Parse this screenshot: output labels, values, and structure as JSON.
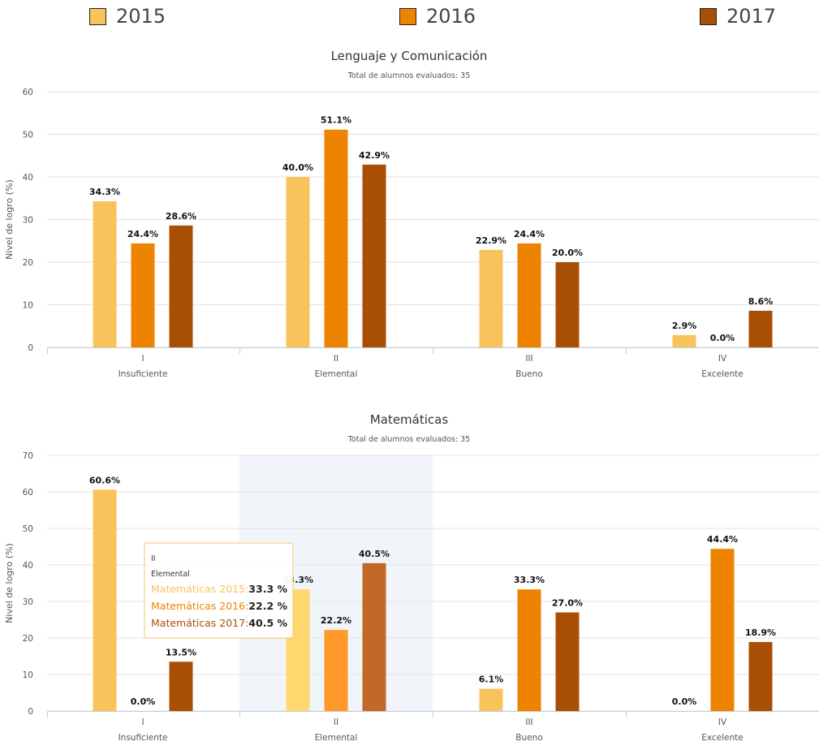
{
  "legend": {
    "items": [
      {
        "label": "2015",
        "color": "#f9c35c"
      },
      {
        "label": "2016",
        "color": "#ee8300"
      },
      {
        "label": "2017",
        "color": "#a94f05"
      }
    ]
  },
  "chart_data": [
    {
      "type": "bar",
      "title": "Lenguaje y Comunicación",
      "subtitle": "Total de alumnos evaluados: 35",
      "ylabel": "Nivel de logro (%)",
      "ylim": [
        0,
        60
      ],
      "yticks": [
        "0",
        "10",
        "20",
        "30",
        "40",
        "50",
        "60"
      ],
      "categories": [
        {
          "roman": "I",
          "name": "Insuficiente"
        },
        {
          "roman": "II",
          "name": "Elemental"
        },
        {
          "roman": "III",
          "name": "Bueno"
        },
        {
          "roman": "IV",
          "name": "Excelente"
        }
      ],
      "series": [
        {
          "name": "2015",
          "values": [
            34.3,
            40.0,
            22.9,
            2.9
          ],
          "labels": [
            "34.3%",
            "40.0%",
            "22.9%",
            "2.9%"
          ]
        },
        {
          "name": "2016",
          "values": [
            24.4,
            51.1,
            24.4,
            0.0
          ],
          "labels": [
            "24.4%",
            "51.1%",
            "24.4%",
            "0.0%"
          ]
        },
        {
          "name": "2017",
          "values": [
            28.6,
            42.9,
            20.0,
            8.6
          ],
          "labels": [
            "28.6%",
            "42.9%",
            "20.0%",
            "8.6%"
          ]
        }
      ],
      "grid": true,
      "legend_position": "top"
    },
    {
      "type": "bar",
      "title": "Matemáticas",
      "subtitle": "Total de alumnos evaluados: 35",
      "ylabel": "Nivel de logro (%)",
      "ylim": [
        0,
        70
      ],
      "yticks": [
        "0",
        "10",
        "20",
        "30",
        "40",
        "50",
        "60",
        "70"
      ],
      "categories": [
        {
          "roman": "I",
          "name": "Insuficiente"
        },
        {
          "roman": "II",
          "name": "Elemental"
        },
        {
          "roman": "III",
          "name": "Bueno"
        },
        {
          "roman": "IV",
          "name": "Excelente"
        }
      ],
      "series": [
        {
          "name": "2015",
          "values": [
            60.6,
            33.3,
            6.1,
            0.0
          ],
          "labels": [
            "60.6%",
            "33.3%",
            "6.1%",
            "0.0%"
          ]
        },
        {
          "name": "2016",
          "values": [
            0.0,
            22.2,
            33.3,
            44.4
          ],
          "labels": [
            "0.0%",
            "22.2%",
            "33.3%",
            "44.4%"
          ]
        },
        {
          "name": "2017",
          "values": [
            13.5,
            40.5,
            27.0,
            18.9
          ],
          "labels": [
            "13.5%",
            "40.5%",
            "27.0%",
            "18.9%"
          ]
        }
      ],
      "grid": true,
      "highlighted_category": 1,
      "highlight_colors": [
        "#fed86e",
        "#ff9a2a",
        "#c2692a"
      ],
      "tooltip": {
        "line1": "II",
        "line2": "Elemental",
        "rows": [
          {
            "series": "Matemáticas 2015:",
            "value": "33.3 %",
            "color": "#f9c35c"
          },
          {
            "series": "Matemáticas 2016:",
            "value": "22.2 %",
            "color": "#ee8300"
          },
          {
            "series": "Matemáticas 2017:",
            "value": "40.5 %",
            "color": "#a94f05"
          }
        ]
      }
    }
  ]
}
